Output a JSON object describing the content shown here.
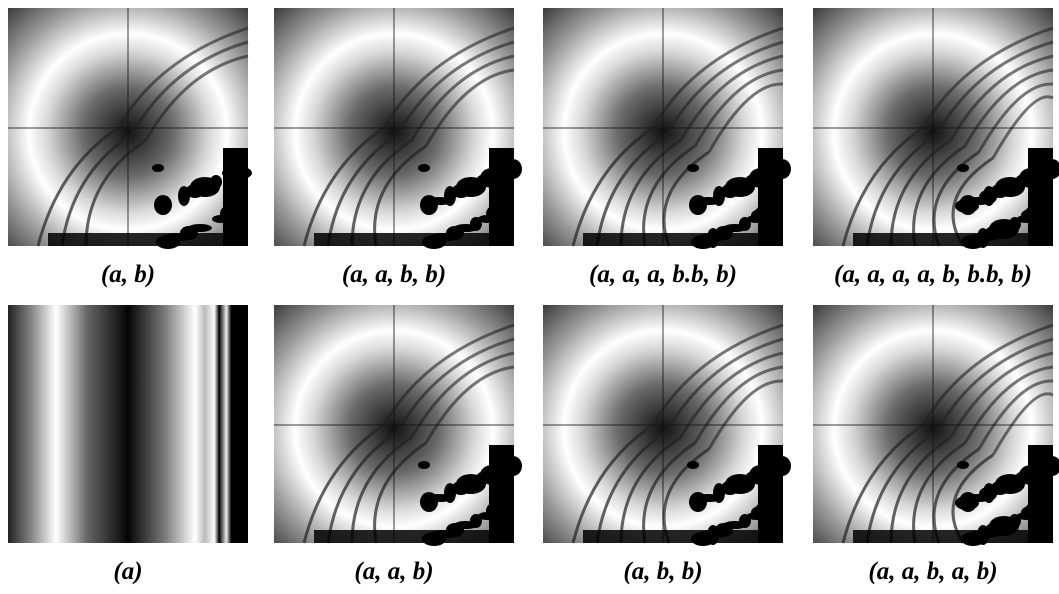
{
  "figure": {
    "panels": [
      {
        "caption": "(a, b)"
      },
      {
        "caption": "(a, a, b, b)"
      },
      {
        "caption": "(a, a, a, b.b, b)"
      },
      {
        "caption": "(a, a, a, a, b, b.b, b)"
      },
      {
        "caption": "(a)"
      },
      {
        "caption": "(a, a, b)"
      },
      {
        "caption": "(a, b, b)"
      },
      {
        "caption": "(a, a, b, a, b)"
      }
    ]
  }
}
